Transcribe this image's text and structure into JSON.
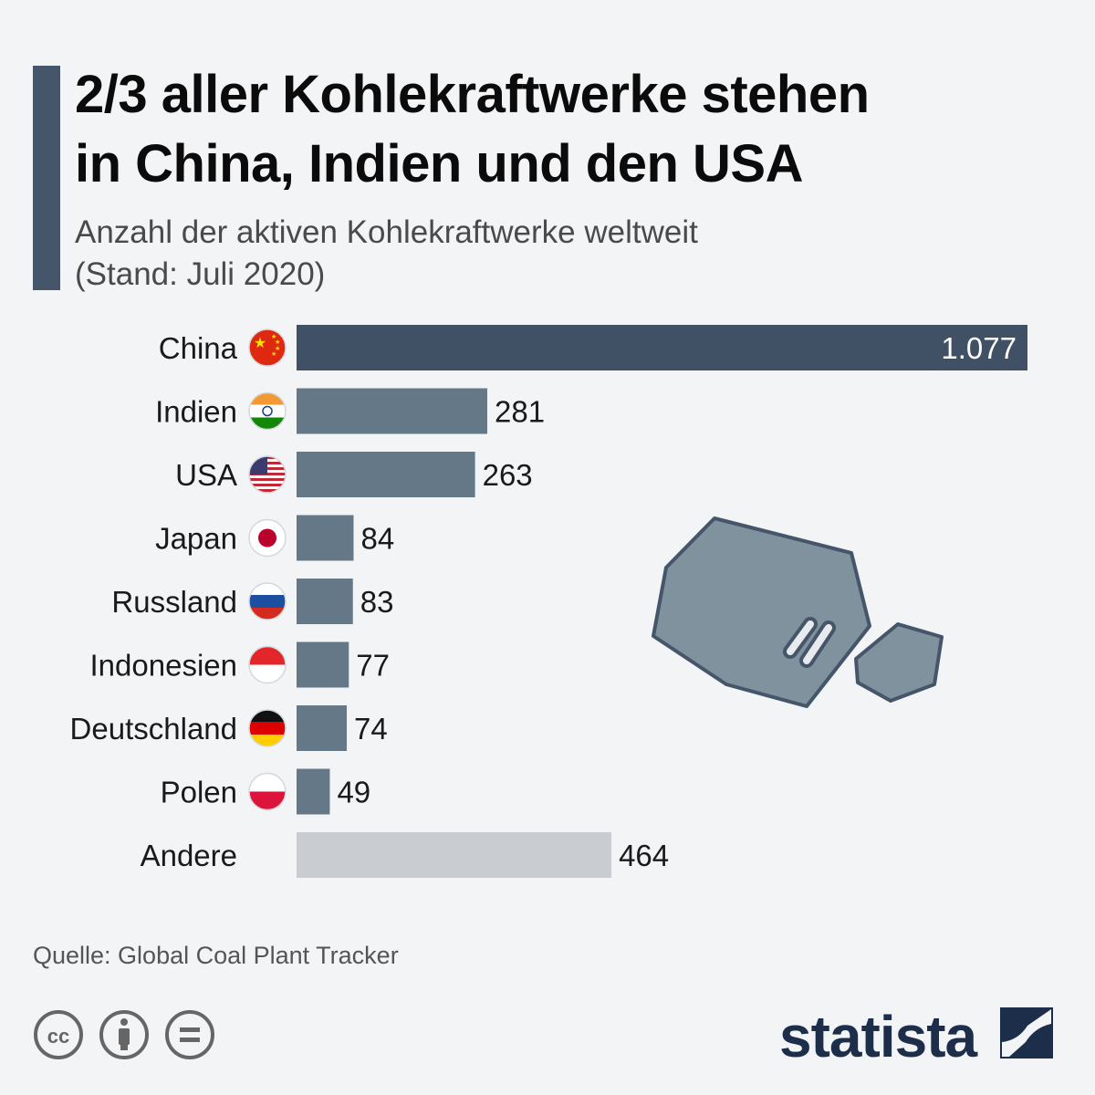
{
  "header": {
    "title_line1": "2/3 aller Kohlekraftwerke stehen",
    "title_line2": "in China, Indien und den USA",
    "subtitle_line1": "Anzahl der aktiven Kohlekraftwerke weltweit",
    "subtitle_line2": "(Stand: Juli 2020)"
  },
  "footer": {
    "source": "Quelle: Global Coal Plant Tracker",
    "brand": "statista",
    "license_icons": [
      "cc-icon",
      "attribution-icon",
      "no-derivatives-icon"
    ]
  },
  "colors": {
    "highlight_bar": "#415165",
    "country_bar": "#647887",
    "other_bar": "#c9ccd0",
    "accent": "#45556a",
    "brand": "#1c2e4a"
  },
  "chart_data": {
    "type": "bar",
    "orientation": "horizontal",
    "title": "2/3 aller Kohlekraftwerke stehen in China, Indien und den USA",
    "subtitle": "Anzahl der aktiven Kohlekraftwerke weltweit (Stand: Juli 2020)",
    "categories": [
      "China",
      "Indien",
      "USA",
      "Japan",
      "Russland",
      "Indonesien",
      "Deutschland",
      "Polen",
      "Andere"
    ],
    "values": [
      1077,
      281,
      263,
      84,
      83,
      77,
      74,
      49,
      464
    ],
    "value_labels": [
      "1.077",
      "281",
      "263",
      "84",
      "83",
      "77",
      "74",
      "49",
      "464"
    ],
    "flags": [
      "china-flag",
      "india-flag",
      "usa-flag",
      "japan-flag",
      "russia-flag",
      "indonesia-flag",
      "germany-flag",
      "poland-flag",
      ""
    ],
    "xlim": [
      0,
      1077
    ],
    "grid": false,
    "legend": "none"
  }
}
